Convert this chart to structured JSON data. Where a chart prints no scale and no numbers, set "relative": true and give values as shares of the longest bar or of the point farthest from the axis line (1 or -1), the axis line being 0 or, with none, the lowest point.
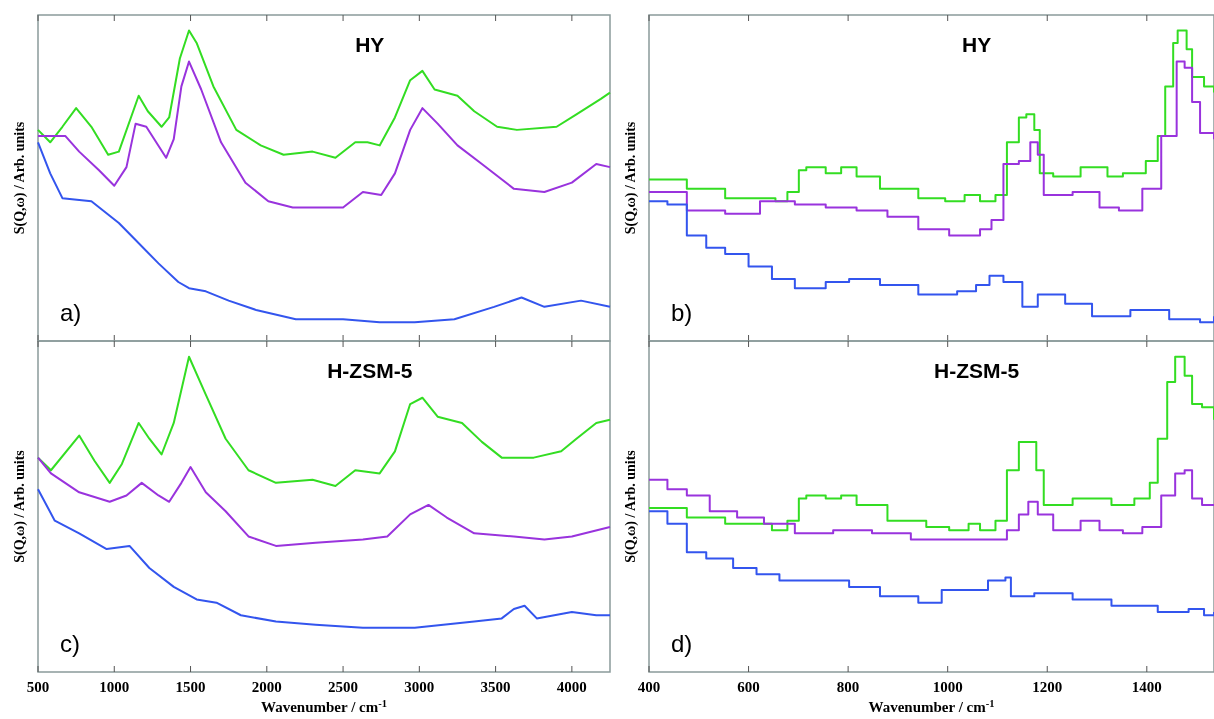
{
  "chart_data": [
    {
      "type": "line",
      "title": "HY",
      "ylabel": "S(Q,ω) / Arb. units",
      "annotations": [
        "a)"
      ],
      "relative": true,
      "tick_labels": false,
      "xlim": [
        500,
        4250
      ],
      "xticks": [
        500,
        1000,
        1500,
        2000,
        2500,
        3000,
        3500,
        4000
      ],
      "series": [
        {
          "color": "#33dd22",
          "x": [
            500,
            580,
            660,
            750,
            850,
            960,
            1030,
            1160,
            1220,
            1310,
            1360,
            1430,
            1490,
            1540,
            1650,
            1800,
            1960,
            2110,
            2300,
            2450,
            2580,
            2660,
            2740,
            2840,
            2940,
            3020,
            3100,
            3250,
            3360,
            3510,
            3640,
            3900,
            4030,
            4190,
            4250
          ],
          "values": [
            0.68,
            0.64,
            0.69,
            0.75,
            0.69,
            0.6,
            0.61,
            0.79,
            0.74,
            0.69,
            0.72,
            0.91,
            1.0,
            0.96,
            0.82,
            0.68,
            0.63,
            0.6,
            0.61,
            0.59,
            0.64,
            0.64,
            0.63,
            0.72,
            0.84,
            0.87,
            0.81,
            0.79,
            0.74,
            0.69,
            0.68,
            0.69,
            0.73,
            0.78,
            0.8
          ]
        },
        {
          "color": "#9933dd",
          "x": [
            500,
            680,
            770,
            900,
            1000,
            1080,
            1140,
            1210,
            1340,
            1390,
            1440,
            1490,
            1570,
            1700,
            1860,
            2010,
            2170,
            2500,
            2630,
            2750,
            2840,
            2940,
            3020,
            3120,
            3250,
            3410,
            3620,
            3820,
            4000,
            4160,
            4250
          ],
          "values": [
            0.66,
            0.66,
            0.61,
            0.55,
            0.5,
            0.56,
            0.7,
            0.69,
            0.59,
            0.65,
            0.82,
            0.9,
            0.81,
            0.64,
            0.51,
            0.45,
            0.43,
            0.43,
            0.48,
            0.47,
            0.54,
            0.68,
            0.75,
            0.7,
            0.63,
            0.57,
            0.49,
            0.48,
            0.51,
            0.57,
            0.56
          ]
        },
        {
          "color": "#3355ee",
          "x": [
            500,
            580,
            660,
            850,
            1030,
            1130,
            1290,
            1420,
            1490,
            1600,
            1750,
            1930,
            2190,
            2500,
            2740,
            2970,
            3230,
            3490,
            3670,
            3820,
            4060,
            4250
          ],
          "values": [
            0.64,
            0.54,
            0.46,
            0.45,
            0.38,
            0.33,
            0.25,
            0.19,
            0.17,
            0.16,
            0.13,
            0.1,
            0.07,
            0.07,
            0.06,
            0.06,
            0.07,
            0.11,
            0.14,
            0.11,
            0.13,
            0.11
          ]
        }
      ]
    },
    {
      "type": "step",
      "title": "HY",
      "ylabel": "S(Q,ω) / Arb. units",
      "annotations": [
        "b)"
      ],
      "relative": true,
      "tick_labels": false,
      "xlim": [
        400,
        1535
      ],
      "xticks": [
        400,
        600,
        800,
        1000,
        1200,
        1400
      ],
      "series": [
        {
          "color": "#33dd22",
          "x": [
            400,
            476,
            553,
            654,
            678,
            701,
            716,
            755,
            786,
            817,
            864,
            941,
            995,
            1034,
            1065,
            1096,
            1119,
            1143,
            1158,
            1174,
            1185,
            1212,
            1267,
            1321,
            1352,
            1398,
            1422,
            1437,
            1453,
            1462,
            1480,
            1491,
            1515,
            1535
          ],
          "values": [
            0.52,
            0.49,
            0.46,
            0.45,
            0.48,
            0.55,
            0.56,
            0.54,
            0.56,
            0.53,
            0.49,
            0.46,
            0.45,
            0.47,
            0.45,
            0.47,
            0.64,
            0.72,
            0.73,
            0.68,
            0.54,
            0.53,
            0.56,
            0.53,
            0.54,
            0.58,
            0.66,
            0.82,
            0.96,
            1.0,
            0.94,
            0.85,
            0.82,
            0.8
          ]
        },
        {
          "color": "#9933dd",
          "x": [
            400,
            476,
            553,
            623,
            693,
            755,
            817,
            879,
            941,
            1003,
            1065,
            1088,
            1112,
            1143,
            1166,
            1181,
            1193,
            1251,
            1305,
            1344,
            1391,
            1429,
            1460,
            1476,
            1491,
            1507,
            1535
          ],
          "values": [
            0.48,
            0.42,
            0.41,
            0.45,
            0.44,
            0.43,
            0.42,
            0.4,
            0.36,
            0.34,
            0.36,
            0.39,
            0.57,
            0.58,
            0.64,
            0.6,
            0.47,
            0.48,
            0.43,
            0.42,
            0.49,
            0.66,
            0.9,
            0.88,
            0.77,
            0.67,
            0.65
          ]
        },
        {
          "color": "#3355ee",
          "x": [
            400,
            437,
            476,
            515,
            553,
            600,
            647,
            693,
            755,
            802,
            864,
            941,
            1019,
            1057,
            1084,
            1112,
            1150,
            1181,
            1236,
            1290,
            1367,
            1445,
            1507,
            1535
          ],
          "values": [
            0.45,
            0.44,
            0.34,
            0.3,
            0.28,
            0.24,
            0.2,
            0.17,
            0.19,
            0.2,
            0.18,
            0.15,
            0.16,
            0.18,
            0.21,
            0.19,
            0.11,
            0.15,
            0.12,
            0.08,
            0.1,
            0.07,
            0.06,
            0.08
          ]
        }
      ]
    },
    {
      "type": "line",
      "title": "H-ZSM-5",
      "xlabel": "Wavenumber / cm$^{-1}$",
      "ylabel": "S(Q,ω) / Arb. units",
      "annotations": [
        "c)"
      ],
      "relative": true,
      "tick_labels": "x",
      "xlim": [
        500,
        4250
      ],
      "xticks": [
        500,
        1000,
        1500,
        2000,
        2500,
        3000,
        3500,
        4000
      ],
      "series": [
        {
          "color": "#33dd22",
          "x": [
            500,
            585,
            770,
            870,
            970,
            1050,
            1160,
            1230,
            1310,
            1390,
            1490,
            1600,
            1730,
            1880,
            2060,
            2300,
            2450,
            2580,
            2740,
            2840,
            2940,
            3020,
            3120,
            3280,
            3410,
            3540,
            3750,
            3930,
            4030,
            4160,
            4250
          ],
          "values": [
            0.68,
            0.64,
            0.75,
            0.67,
            0.6,
            0.66,
            0.79,
            0.74,
            0.69,
            0.79,
            1.0,
            0.88,
            0.74,
            0.64,
            0.6,
            0.61,
            0.59,
            0.64,
            0.63,
            0.7,
            0.85,
            0.87,
            0.81,
            0.79,
            0.73,
            0.68,
            0.68,
            0.7,
            0.74,
            0.79,
            0.8
          ]
        },
        {
          "color": "#9933dd",
          "x": [
            500,
            585,
            770,
            970,
            1080,
            1180,
            1290,
            1360,
            1440,
            1500,
            1600,
            1730,
            1880,
            2060,
            2320,
            2630,
            2790,
            2940,
            3060,
            3180,
            3360,
            3620,
            3820,
            4000,
            4250
          ],
          "values": [
            0.68,
            0.63,
            0.57,
            0.54,
            0.56,
            0.6,
            0.56,
            0.54,
            0.6,
            0.65,
            0.57,
            0.51,
            0.43,
            0.4,
            0.41,
            0.42,
            0.43,
            0.5,
            0.53,
            0.49,
            0.44,
            0.43,
            0.42,
            0.43,
            0.46
          ]
        },
        {
          "color": "#3355ee",
          "x": [
            500,
            610,
            770,
            950,
            1100,
            1230,
            1390,
            1540,
            1670,
            1830,
            2060,
            2320,
            2630,
            2970,
            3360,
            3540,
            3620,
            3690,
            3770,
            4000,
            4160,
            4250
          ],
          "values": [
            0.58,
            0.48,
            0.44,
            0.39,
            0.4,
            0.33,
            0.27,
            0.23,
            0.22,
            0.18,
            0.16,
            0.15,
            0.14,
            0.14,
            0.16,
            0.17,
            0.2,
            0.21,
            0.17,
            0.19,
            0.18,
            0.18
          ]
        }
      ]
    },
    {
      "type": "step",
      "title": "H-ZSM-5",
      "xlabel": "Wavenumber / cm$^{-1}$",
      "ylabel": "S(Q,ω) / Arb. units",
      "annotations": [
        "d)"
      ],
      "relative": true,
      "tick_labels": "x",
      "xlim": [
        400,
        1535
      ],
      "xticks": [
        400,
        600,
        800,
        1000,
        1200,
        1400
      ],
      "series": [
        {
          "color": "#33dd22",
          "x": [
            400,
            476,
            553,
            647,
            678,
            701,
            716,
            755,
            786,
            817,
            879,
            957,
            1003,
            1042,
            1065,
            1096,
            1119,
            1143,
            1158,
            1178,
            1193,
            1251,
            1298,
            1329,
            1375,
            1406,
            1422,
            1441,
            1457,
            1476,
            1491,
            1511,
            1535
          ],
          "values": [
            0.52,
            0.49,
            0.47,
            0.45,
            0.48,
            0.55,
            0.56,
            0.55,
            0.56,
            0.53,
            0.48,
            0.46,
            0.45,
            0.47,
            0.45,
            0.48,
            0.64,
            0.73,
            0.73,
            0.64,
            0.53,
            0.55,
            0.55,
            0.53,
            0.55,
            0.6,
            0.74,
            0.92,
            1.0,
            0.94,
            0.85,
            0.84,
            0.8
          ]
        },
        {
          "color": "#9933dd",
          "x": [
            400,
            437,
            476,
            522,
            577,
            631,
            693,
            770,
            848,
            926,
            988,
            1050,
            1119,
            1143,
            1162,
            1181,
            1212,
            1267,
            1305,
            1352,
            1391,
            1429,
            1457,
            1476,
            1491,
            1511,
            1535
          ],
          "values": [
            0.61,
            0.58,
            0.56,
            0.51,
            0.49,
            0.47,
            0.44,
            0.45,
            0.44,
            0.42,
            0.42,
            0.42,
            0.45,
            0.5,
            0.54,
            0.5,
            0.45,
            0.48,
            0.45,
            0.44,
            0.46,
            0.56,
            0.63,
            0.64,
            0.55,
            0.53,
            0.53
          ]
        },
        {
          "color": "#3355ee",
          "x": [
            400,
            437,
            476,
            515,
            569,
            616,
            662,
            740,
            802,
            864,
            941,
            988,
            1034,
            1081,
            1116,
            1127,
            1174,
            1251,
            1329,
            1422,
            1484,
            1515,
            1535
          ],
          "values": [
            0.51,
            0.47,
            0.38,
            0.36,
            0.33,
            0.31,
            0.29,
            0.29,
            0.27,
            0.24,
            0.22,
            0.26,
            0.26,
            0.29,
            0.3,
            0.24,
            0.25,
            0.23,
            0.21,
            0.19,
            0.2,
            0.18,
            0.19
          ]
        }
      ]
    }
  ]
}
